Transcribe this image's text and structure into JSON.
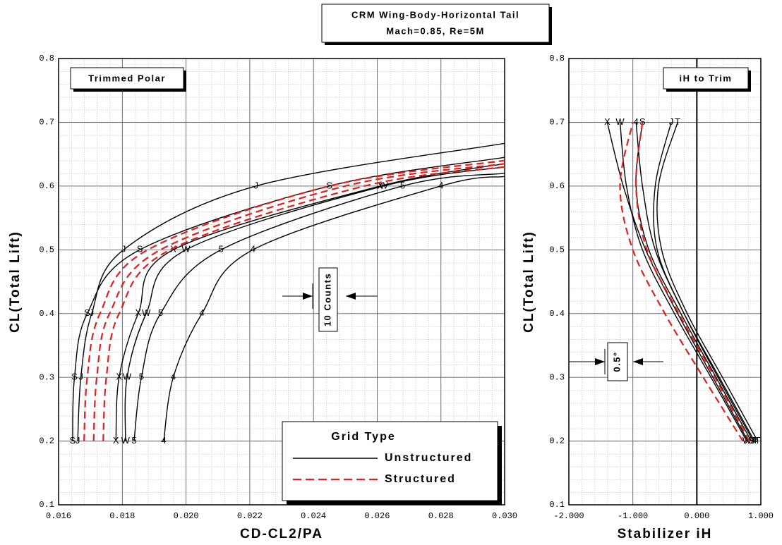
{
  "header": {
    "title": "CRM Wing-Body-Horizontal Tail",
    "subtitle": "Mach=0.85, Re=5M"
  },
  "chart_data": [
    {
      "type": "line",
      "title": "Trimmed Polar",
      "x_label": "CD-CL2/PA",
      "y_label": "CL(Total Lift)",
      "xlim": [
        0.016,
        0.03
      ],
      "ylim": [
        0.1,
        0.8
      ],
      "xticks": [
        0.016,
        0.018,
        {
          "value": 0.02,
          "label": "0.020"
        },
        0.022,
        0.024,
        0.026,
        0.028,
        {
          "value": 0.03,
          "label": "0.030"
        }
      ],
      "yticks": [
        0.1,
        0.2,
        0.3,
        0.4,
        0.5,
        0.6,
        0.7,
        0.8
      ],
      "grid": true,
      "minor_grid": true,
      "legend": "lower right",
      "legend_title": "Grid Type",
      "label_points": "inner",
      "annotation": "10 Counts",
      "series": [
        {
          "name": "Unstructured",
          "color": "#000000",
          "style": "solid",
          "curves": [
            {
              "label": "S",
              "x": [
                0.01644,
                0.0165,
                0.0169,
                0.01855,
                0.0245,
                0.03
              ],
              "values": [
                0.2,
                0.3,
                0.4,
                0.5,
                0.6,
                0.645
              ]
            },
            {
              "label": "J",
              "x": [
                0.0166,
                0.0167,
                0.01704,
                0.01804,
                0.0222,
                0.03
              ],
              "values": [
                0.2,
                0.3,
                0.4,
                0.5,
                0.6,
                0.667
              ]
            },
            {
              "label": "X",
              "x": [
                0.0178,
                0.0179,
                0.0185,
                0.0196,
                0.0261,
                0.03
              ],
              "values": [
                0.2,
                0.3,
                0.4,
                0.5,
                0.6,
                0.635
              ]
            },
            {
              "label": "W",
              "x": [
                0.0181,
                0.01815,
                0.01875,
                0.02,
                0.0262,
                0.03
              ],
              "values": [
                0.2,
                0.3,
                0.4,
                0.5,
                0.6,
                0.63
              ]
            },
            {
              "label": "5",
              "x": [
                0.01837,
                0.0186,
                0.0192,
                0.0211,
                0.0268,
                0.03
              ],
              "values": [
                0.2,
                0.3,
                0.4,
                0.5,
                0.6,
                0.62
              ]
            },
            {
              "label": "4",
              "x": [
                0.0193,
                0.0196,
                0.0205,
                0.0221,
                0.028,
                0.03
              ],
              "values": [
                0.2,
                0.3,
                0.4,
                0.5,
                0.6,
                0.615
              ]
            }
          ]
        },
        {
          "name": "Structured",
          "color": "#e02020",
          "style": "dashed",
          "curves": [
            {
              "x": [
                0.0168,
                0.0169,
                0.0173,
                0.0188,
                0.0245,
                0.03
              ],
              "values": [
                0.2,
                0.3,
                0.4,
                0.5,
                0.6,
                0.64
              ]
            },
            {
              "x": [
                0.0171,
                0.0172,
                0.0176,
                0.0192,
                0.025,
                0.03
              ],
              "values": [
                0.2,
                0.3,
                0.4,
                0.5,
                0.6,
                0.635
              ]
            },
            {
              "x": [
                0.0174,
                0.0175,
                0.0179,
                0.0195,
                0.0256,
                0.03
              ],
              "values": [
                0.2,
                0.3,
                0.4,
                0.5,
                0.6,
                0.63
              ]
            }
          ]
        }
      ]
    },
    {
      "type": "line",
      "title": "iH to Trim",
      "x_label": "Stabilizer iH",
      "y_label": "CL(Total Lift)",
      "xlim": [
        -2,
        1
      ],
      "ylim": [
        0.1,
        0.8
      ],
      "xticks": [
        {
          "value": -2,
          "label": "-2.000"
        },
        {
          "value": -1,
          "label": "-1.000"
        },
        {
          "value": 0,
          "label": "0.000"
        },
        {
          "value": 1,
          "label": "1.000"
        }
      ],
      "yticks": [
        0.1,
        0.2,
        0.3,
        0.4,
        0.5,
        0.6,
        0.7,
        0.8
      ],
      "grid": true,
      "minor_grid": true,
      "zero_line": true,
      "label_points": "ends",
      "annotation": "0.5°",
      "series": [
        {
          "name": "Unstructured",
          "color": "#000000",
          "style": "solid",
          "curves": [
            {
              "label": "S",
              "x": [
                0.85,
                0.3,
                -0.25,
                -0.75,
                -0.95,
                -0.85
              ],
              "values": [
                0.2,
                0.3,
                0.4,
                0.5,
                0.6,
                0.7
              ]
            },
            {
              "label": "X",
              "x": [
                0.8,
                0.25,
                -0.3,
                -0.8,
                -1.15,
                -1.4
              ],
              "values": [
                0.2,
                0.3,
                0.4,
                0.5,
                0.6,
                0.7
              ]
            },
            {
              "label": "W",
              "x": [
                0.78,
                0.22,
                -0.35,
                -0.85,
                -1.1,
                -1.2
              ],
              "values": [
                0.2,
                0.3,
                0.4,
                0.5,
                0.6,
                0.7
              ]
            },
            {
              "label": "4",
              "x": [
                0.9,
                0.35,
                -0.2,
                -0.65,
                -0.85,
                -0.95
              ],
              "values": [
                0.2,
                0.3,
                0.4,
                0.5,
                0.6,
                0.7
              ]
            },
            {
              "label": "J",
              "x": [
                0.88,
                0.33,
                -0.2,
                -0.62,
                -0.65,
                -0.4
              ],
              "values": [
                0.2,
                0.3,
                0.4,
                0.5,
                0.6,
                0.7
              ]
            },
            {
              "label": "T",
              "x": [
                0.95,
                0.4,
                -0.15,
                -0.55,
                -0.6,
                -0.3
              ],
              "values": [
                0.2,
                0.3,
                0.4,
                0.5,
                0.6,
                0.7
              ]
            }
          ]
        },
        {
          "name": "Structured",
          "color": "#e02020",
          "style": "dashed",
          "curves": [
            {
              "x": [
                0.82,
                0.28,
                -0.28,
                -0.78,
                -0.95,
                -0.85
              ],
              "values": [
                0.2,
                0.3,
                0.4,
                0.5,
                0.6,
                0.7
              ]
            },
            {
              "x": [
                0.72,
                0.1,
                -0.5,
                -1.0,
                -1.2,
                -1.0
              ],
              "values": [
                0.2,
                0.3,
                0.4,
                0.5,
                0.6,
                0.7
              ]
            }
          ]
        }
      ]
    }
  ]
}
